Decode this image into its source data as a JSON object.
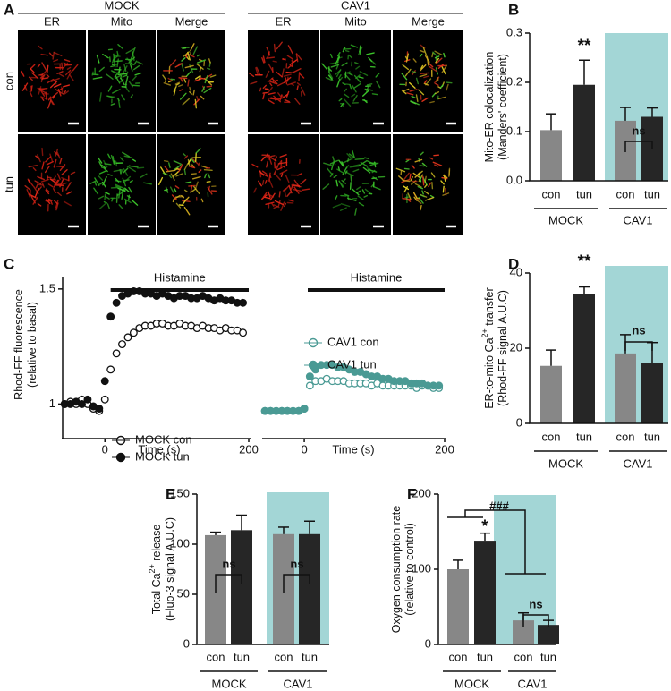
{
  "panel_a": {
    "label": "A",
    "rows": [
      "con",
      "tun"
    ],
    "groups": [
      {
        "name": "MOCK",
        "columns": [
          "ER",
          "Mito",
          "Merge"
        ]
      },
      {
        "name": "CAV1",
        "columns": [
          "ER",
          "Mito",
          "Merge"
        ]
      }
    ]
  },
  "chart_data": [
    {
      "type": "bar",
      "panel": "B",
      "ylabel": [
        [
          "Mito-ER colocalization"
        ],
        [
          "(Manders' coefficient)"
        ]
      ],
      "categories": [
        "con",
        "tun",
        "con",
        "tun"
      ],
      "groups": [
        "MOCK",
        "CAV1"
      ],
      "values": [
        0.103,
        0.195,
        0.122,
        0.13
      ],
      "errors": [
        0.033,
        0.05,
        0.027,
        0.018
      ],
      "colors": [
        "#878787",
        "#262626",
        "#878787",
        "#262626"
      ],
      "shade_color": "#a3d6d6",
      "ylim": [
        0,
        0.3
      ],
      "yticks": [
        {
          "value": 0,
          "label": "0.0"
        },
        0.1,
        0.2,
        0.3
      ],
      "annotations": [
        "**",
        "ns"
      ]
    },
    {
      "type": "scatter",
      "panel": "C",
      "title": "Histamine",
      "xlabel": "Time (s)",
      "ylabel": [
        [
          "Rhod-FF fluorescence"
        ],
        [
          "(relative to basal)"
        ]
      ],
      "xlim": [
        -60,
        200
      ],
      "xticks": [
        0,
        200
      ],
      "ylim": [
        0.85,
        1.55
      ],
      "yticks": [
        1,
        1.5
      ],
      "x": [
        -56,
        -48,
        -40,
        -32,
        -24,
        -16,
        -8,
        0,
        8,
        16,
        24,
        32,
        40,
        48,
        56,
        64,
        72,
        80,
        88,
        96,
        104,
        112,
        120,
        128,
        136,
        144,
        152,
        160,
        168,
        176,
        184,
        192
      ],
      "series": [
        {
          "name": "MOCK con",
          "color": "#111111",
          "marker_fill": "#ffffff",
          "values": [
            1,
            1.01,
            1,
            1.02,
            1,
            0.98,
            0.97,
            1.02,
            1.15,
            1.22,
            1.26,
            1.29,
            1.31,
            1.33,
            1.34,
            1.34,
            1.35,
            1.35,
            1.34,
            1.34,
            1.35,
            1.34,
            1.34,
            1.33,
            1.34,
            1.33,
            1.33,
            1.32,
            1.33,
            1.32,
            1.32,
            1.31
          ]
        },
        {
          "name": "MOCK tun",
          "color": "#111111",
          "marker_fill": "#111111",
          "values": [
            1,
            1,
            1.01,
            1,
            1.02,
            0.99,
            0.98,
            1.1,
            1.38,
            1.44,
            1.47,
            1.48,
            1.49,
            1.49,
            1.48,
            1.48,
            1.47,
            1.48,
            1.47,
            1.46,
            1.47,
            1.47,
            1.46,
            1.46,
            1.47,
            1.46,
            1.45,
            1.46,
            1.45,
            1.45,
            1.44,
            1.44
          ]
        }
      ]
    },
    {
      "type": "scatter",
      "title": "Histamine",
      "xlabel": "Time (s)",
      "xlim": [
        -60,
        200
      ],
      "xticks": [
        0,
        200
      ],
      "ylim": [
        0.85,
        1.55
      ],
      "x": [
        -56,
        -48,
        -40,
        -32,
        -24,
        -16,
        -8,
        0,
        8,
        16,
        24,
        32,
        40,
        48,
        56,
        64,
        72,
        80,
        88,
        96,
        104,
        112,
        120,
        128,
        136,
        144,
        152,
        160,
        168,
        176,
        184,
        192
      ],
      "series": [
        {
          "name": "CAV1 con",
          "color": "#4a9a94",
          "marker_fill": "#ffffff",
          "values": [
            0.97,
            0.97,
            0.97,
            0.97,
            0.97,
            0.97,
            0.97,
            0.98,
            1.08,
            1.1,
            1.1,
            1.11,
            1.1,
            1.1,
            1.1,
            1.09,
            1.09,
            1.09,
            1.09,
            1.08,
            1.09,
            1.08,
            1.08,
            1.08,
            1.08,
            1.08,
            1.08,
            1.07,
            1.08,
            1.08,
            1.07,
            1.07
          ]
        },
        {
          "name": "CAV1 tun",
          "color": "#4a9a94",
          "marker_fill": "#4a9a94",
          "values": [
            0.97,
            0.97,
            0.97,
            0.97,
            0.97,
            0.97,
            0.97,
            0.98,
            1.12,
            1.15,
            1.17,
            1.17,
            1.17,
            1.16,
            1.16,
            1.15,
            1.14,
            1.14,
            1.13,
            1.12,
            1.12,
            1.11,
            1.11,
            1.1,
            1.1,
            1.1,
            1.09,
            1.09,
            1.09,
            1.08,
            1.08,
            1.08
          ]
        }
      ]
    },
    {
      "type": "bar",
      "panel": "D",
      "ylabel": [
        [
          "ER-to-mito Ca",
          "2+",
          " transfer"
        ],
        [
          "(Rhod-FF signal A.U.C)"
        ]
      ],
      "categories": [
        "con",
        "tun",
        "con",
        "tun"
      ],
      "groups": [
        "MOCK",
        "CAV1"
      ],
      "values": [
        15.3,
        34.3,
        18.6,
        16
      ],
      "errors": [
        4.2,
        2,
        5,
        5.5
      ],
      "colors": [
        "#878787",
        "#262626",
        "#878787",
        "#262626"
      ],
      "shade_color": "#a3d6d6",
      "ylim": [
        0,
        40
      ],
      "yticks": [
        0,
        20,
        40
      ],
      "annotations": [
        "**",
        "ns"
      ]
    },
    {
      "type": "bar",
      "panel": "E",
      "ylabel": [
        [
          "Total Ca",
          "2+",
          " release"
        ],
        [
          "(Fluo-3 signal A.U.C)"
        ]
      ],
      "categories": [
        "con",
        "tun",
        "con",
        "tun"
      ],
      "groups": [
        "MOCK",
        "CAV1"
      ],
      "values": [
        109,
        114,
        110,
        110
      ],
      "errors": [
        3,
        15,
        7,
        13
      ],
      "colors": [
        "#878787",
        "#262626",
        "#878787",
        "#262626"
      ],
      "shade_color": "#a3d6d6",
      "ylim": [
        0,
        150
      ],
      "yticks": [
        0,
        50,
        100,
        150
      ],
      "annotations": [
        "ns",
        "ns"
      ]
    },
    {
      "type": "bar",
      "panel": "F",
      "ylabel": [
        [
          "Oxygen consumption rate"
        ],
        [
          "(relative to control)"
        ]
      ],
      "categories": [
        "con",
        "tun",
        "con",
        "tun"
      ],
      "groups": [
        "MOCK",
        "CAV1"
      ],
      "values": [
        100,
        138,
        32,
        26
      ],
      "errors": [
        12,
        10,
        10,
        6
      ],
      "colors": [
        "#878787",
        "#262626",
        "#878787",
        "#262626"
      ],
      "shade_color": "#a3d6d6",
      "ylim": [
        0,
        200
      ],
      "yticks": [
        0,
        100,
        200
      ],
      "annotations": [
        "*",
        "ns",
        "###"
      ]
    }
  ]
}
